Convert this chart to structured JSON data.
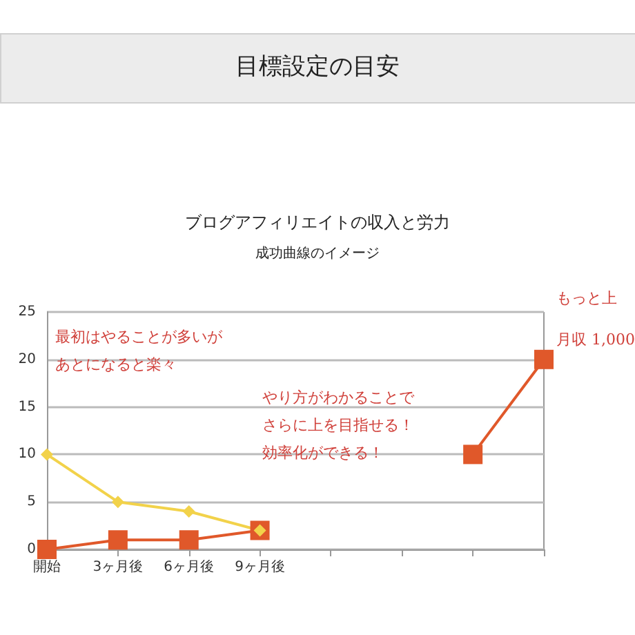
{
  "chart_data": {
    "type": "line",
    "title": "ブログアフィリエイトの収入と労力",
    "subtitle": "成功曲線のイメージ",
    "categories": [
      "開始",
      "3ヶ月後",
      "6ヶ月後",
      "9ヶ月後",
      null,
      null,
      null,
      null
    ],
    "series": [
      {
        "color": "#e0582a",
        "values": [
          0,
          1,
          1,
          2,
          null,
          null,
          10,
          20
        ],
        "marker": "square"
      },
      {
        "color": "#f2d24a",
        "values": [
          10,
          5,
          4,
          2,
          null,
          null,
          null,
          null
        ],
        "marker": "diamond"
      }
    ],
    "ylim": [
      0,
      25
    ],
    "yticks": [
      0,
      5,
      10,
      15,
      20,
      25
    ],
    "grid": "y",
    "line_style": "solid",
    "annotations": [
      "目標設定の目安",
      "最初はやることが多いが",
      "あとになると楽々",
      "やり方がわかることで",
      "さらに上を目指せる！",
      "効率化ができる！",
      "もっと上",
      "月収 1,000"
    ]
  }
}
